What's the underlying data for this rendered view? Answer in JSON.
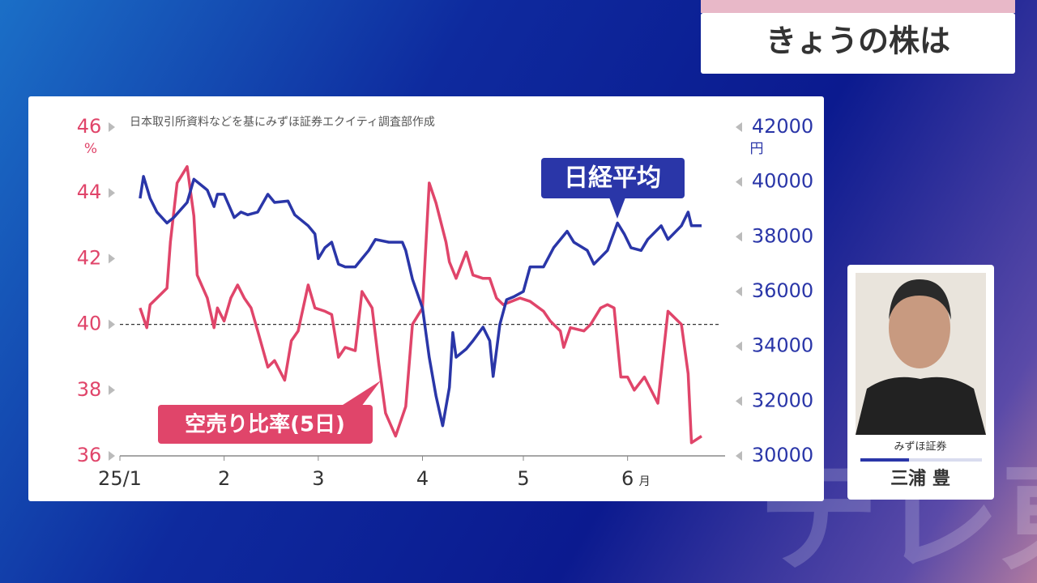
{
  "header": {
    "title": "きょうの株は"
  },
  "guest": {
    "company": "みずほ証券",
    "name": "三浦 豊"
  },
  "watermark": "テレ東",
  "chart_data": {
    "type": "line",
    "note": "日本取引所資料などを基にみずほ証券エクイティ調査部作成",
    "y_unit": "%",
    "y2_unit": "円",
    "x_unit": "月",
    "xlim": [
      0,
      180
    ],
    "xticks": [
      {
        "value": 0,
        "label": "25/1"
      },
      {
        "value": 31,
        "label": "2"
      },
      {
        "value": 59,
        "label": "3"
      },
      {
        "value": 90,
        "label": "4"
      },
      {
        "value": 120,
        "label": "5"
      },
      {
        "value": 151,
        "label": "6"
      }
    ],
    "ylim": [
      36,
      46
    ],
    "yticks": [
      36,
      38,
      40,
      42,
      44,
      46
    ],
    "y2lim": [
      30000,
      42000
    ],
    "y2ticks": [
      30000,
      32000,
      34000,
      36000,
      38000,
      40000,
      42000
    ],
    "hline": 40,
    "series": [
      {
        "name": "空売り比率(5日)",
        "color": "#e0456a",
        "x": [
          6,
          8,
          9,
          11,
          14,
          15,
          17,
          20,
          22,
          23,
          26,
          28,
          29,
          31,
          33,
          35,
          37,
          39,
          41,
          44,
          46,
          49,
          51,
          53,
          56,
          58,
          61,
          63,
          65,
          67,
          70,
          72,
          75,
          77,
          79,
          82,
          85,
          87,
          90,
          92,
          94,
          97,
          98,
          100,
          103,
          105,
          108,
          110,
          112,
          114,
          119,
          122,
          126,
          128,
          131,
          132,
          134,
          138,
          140,
          143,
          145,
          147,
          149,
          151,
          153,
          156,
          160,
          163,
          167,
          169,
          170,
          173
        ],
        "values": [
          40.5,
          39.9,
          40.6,
          40.8,
          41.1,
          42.5,
          44.3,
          44.8,
          43.3,
          41.5,
          40.8,
          39.9,
          40.5,
          40.1,
          40.8,
          41.2,
          40.8,
          40.5,
          39.8,
          38.7,
          38.9,
          38.3,
          39.5,
          39.8,
          41.2,
          40.5,
          40.4,
          40.3,
          39.0,
          39.3,
          39.2,
          41.0,
          40.5,
          38.8,
          37.3,
          36.6,
          37.5,
          40.0,
          40.5,
          44.3,
          43.7,
          42.5,
          41.9,
          41.4,
          42.2,
          41.5,
          41.4,
          41.4,
          40.8,
          40.6,
          40.8,
          40.7,
          40.4,
          40.1,
          39.8,
          39.3,
          39.9,
          39.8,
          40.0,
          40.5,
          40.6,
          40.5,
          38.4,
          38.4,
          38.0,
          38.4,
          37.6,
          40.4,
          40.0,
          38.5,
          36.4,
          36.6
        ]
      },
      {
        "name": "日経平均",
        "color": "#2a36a8",
        "axis": "y2",
        "x": [
          6,
          7,
          9,
          11,
          14,
          16,
          20,
          22,
          26,
          28,
          29,
          31,
          34,
          36,
          38,
          41,
          44,
          46,
          50,
          52,
          56,
          58,
          59,
          61,
          63,
          65,
          67,
          70,
          72,
          74,
          76,
          80,
          84,
          85,
          87,
          90,
          92,
          94,
          96,
          98,
          99,
          100,
          103,
          105,
          108,
          110,
          111,
          113,
          115,
          117,
          120,
          122,
          126,
          129,
          133,
          135,
          139,
          141,
          145,
          148,
          150,
          152,
          155,
          157,
          161,
          163,
          167,
          169,
          170,
          173
        ],
        "values": [
          39400,
          40200,
          39400,
          38900,
          38500,
          38700,
          39250,
          40100,
          39700,
          39100,
          39550,
          39550,
          38700,
          38900,
          38800,
          38900,
          39550,
          39250,
          39300,
          38800,
          38400,
          38100,
          37200,
          37600,
          37800,
          37000,
          36900,
          36900,
          37200,
          37500,
          37900,
          37800,
          37800,
          37500,
          36450,
          35400,
          33600,
          32200,
          31100,
          32500,
          34500,
          33600,
          33900,
          34200,
          34700,
          34200,
          32900,
          34800,
          35700,
          35800,
          36000,
          36900,
          36900,
          37600,
          38200,
          37800,
          37500,
          37000,
          37500,
          38500,
          38100,
          37600,
          37500,
          37900,
          38400,
          37900,
          38400,
          38900,
          38400,
          38400
        ]
      }
    ]
  }
}
